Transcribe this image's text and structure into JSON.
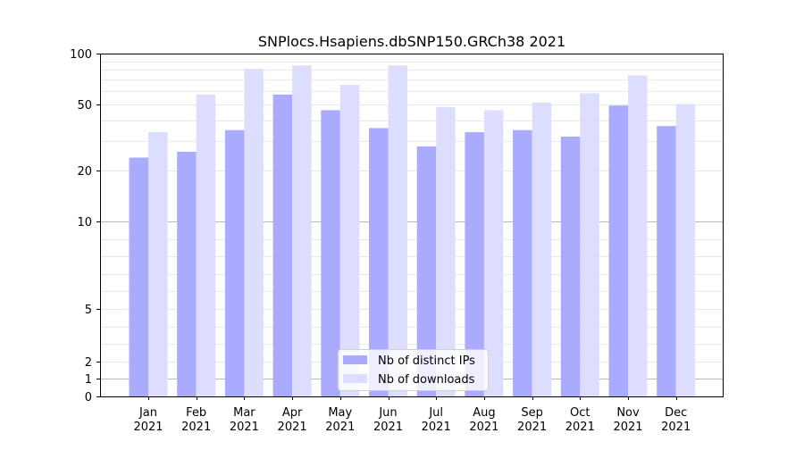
{
  "chart_data": {
    "type": "bar",
    "title": "SNPlocs.Hsapiens.dbSNP150.GRCh38 2021",
    "xlabel": "",
    "ylabel": "",
    "scale": "log1p",
    "ylim": [
      0,
      100
    ],
    "yticks": [
      "0",
      "1",
      "2",
      "5",
      "10",
      "20",
      "50",
      "100"
    ],
    "categories": [
      "Jan",
      "Feb",
      "Mar",
      "Apr",
      "May",
      "Jun",
      "Jul",
      "Aug",
      "Sep",
      "Oct",
      "Nov",
      "Dec"
    ],
    "category_year": "2021",
    "series": [
      {
        "name": "Nb of distinct IPs",
        "color": "#aaaaff",
        "values": [
          24,
          26,
          35,
          57,
          46,
          36,
          28,
          34,
          35,
          32,
          49,
          37
        ]
      },
      {
        "name": "Nb of downloads",
        "color": "#ddddff",
        "values": [
          34,
          57,
          81,
          85,
          65,
          85,
          48,
          46,
          51,
          58,
          74,
          50
        ]
      }
    ],
    "grid": true,
    "legend": "bottom-center"
  }
}
